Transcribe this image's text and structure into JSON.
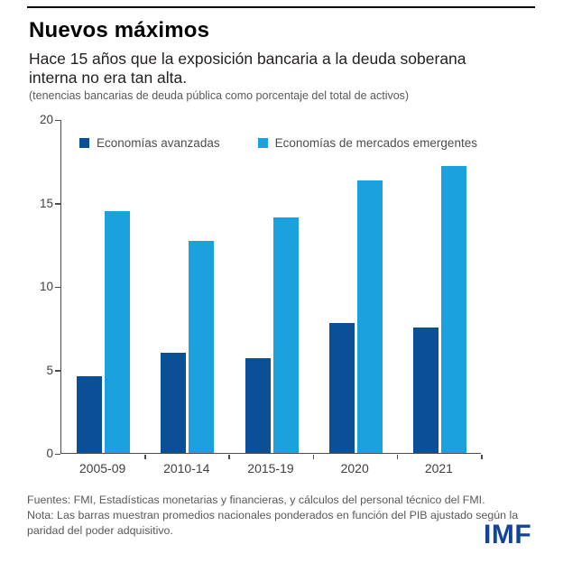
{
  "header": {
    "title": "Nuevos máximos",
    "subtitle": "Hace 15 años que la exposición bancaria a la deuda soberana interna no era tan alta.",
    "unit_note": "(tenencias bancarias de deuda pública como porcentaje del total de activos)"
  },
  "chart_data": {
    "type": "bar",
    "categories": [
      "2005-09",
      "2010-14",
      "2015-19",
      "2020",
      "2021"
    ],
    "series": [
      {
        "name": "Economías avanzadas",
        "color": "#0b4f96",
        "values": [
          4.6,
          6.0,
          5.7,
          7.8,
          7.5
        ]
      },
      {
        "name": "Economías de mercados emergentes",
        "color": "#1ba1de",
        "values": [
          14.5,
          12.7,
          14.1,
          16.3,
          17.2
        ]
      }
    ],
    "ylim": [
      0,
      20
    ],
    "yticks": [
      0,
      5,
      10,
      15,
      20
    ],
    "grid": false,
    "legend_position": "top-left"
  },
  "footer": {
    "fuentes": "Fuentes: FMI, Estadísticas monetarias y financieras, y cálculos del personal técnico del FMI.",
    "nota": "Nota: Las barras muestran promedios nacionales ponderados en función del PIB ajustado según la paridad del poder adquisitivo.",
    "brand": "IMF"
  },
  "colors": {
    "advanced": "#0b4f96",
    "emerging": "#1ba1de",
    "brand_blue": "#12449b",
    "axis": "#4d4d4f",
    "muted_text": "#58595b",
    "top_rule": "#000000"
  }
}
